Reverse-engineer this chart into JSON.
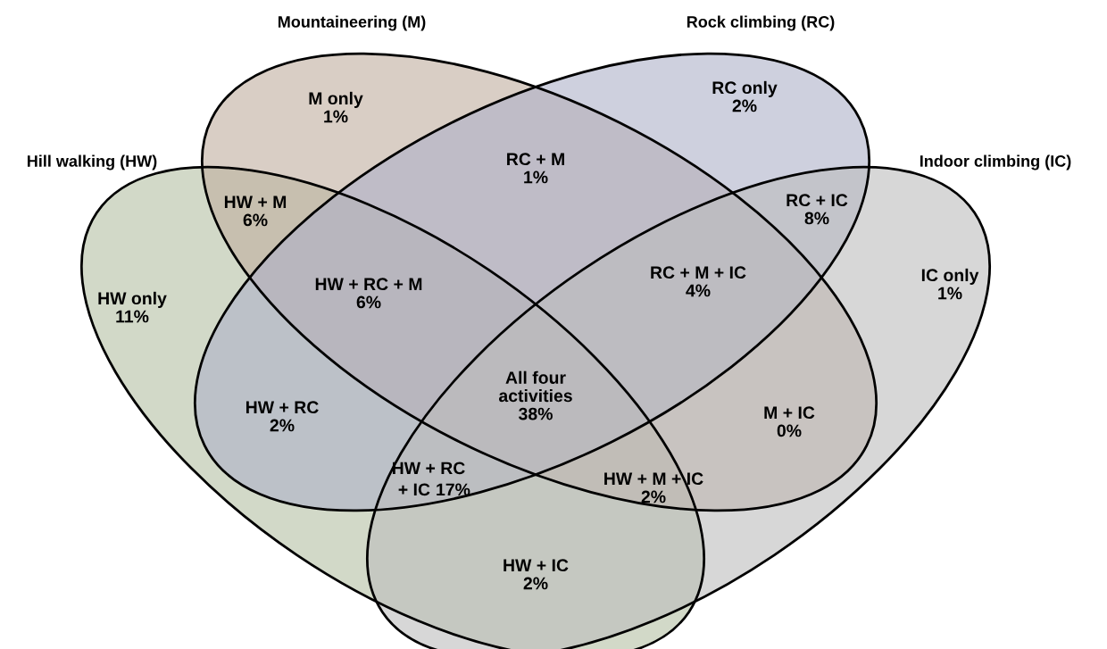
{
  "chart_data": {
    "type": "other",
    "categories": [
      "M only",
      "RC only",
      "RC + M",
      "HW + M",
      "RC + IC",
      "HW only",
      "HW + RC + M",
      "RC + M + IC",
      "IC only",
      "All four activities",
      "HW + RC",
      "M + IC",
      "HW + RC + IC",
      "HW + M + IC",
      "HW + IC"
    ],
    "values": [
      1,
      2,
      1,
      6,
      8,
      11,
      6,
      4,
      1,
      38,
      2,
      0,
      17,
      2,
      2
    ],
    "value_labels": [
      "1%",
      "2%",
      "1%",
      "6%",
      "8%",
      "11%",
      "6%",
      "4%",
      "1%",
      "38%",
      "2%",
      "0%",
      "17%",
      "2%",
      "2%"
    ],
    "annotations": [
      "Hill walking (HW)",
      "Mountaineering (M)",
      "Rock climbing (RC)",
      "Indoor climbing (IC)"
    ]
  }
}
